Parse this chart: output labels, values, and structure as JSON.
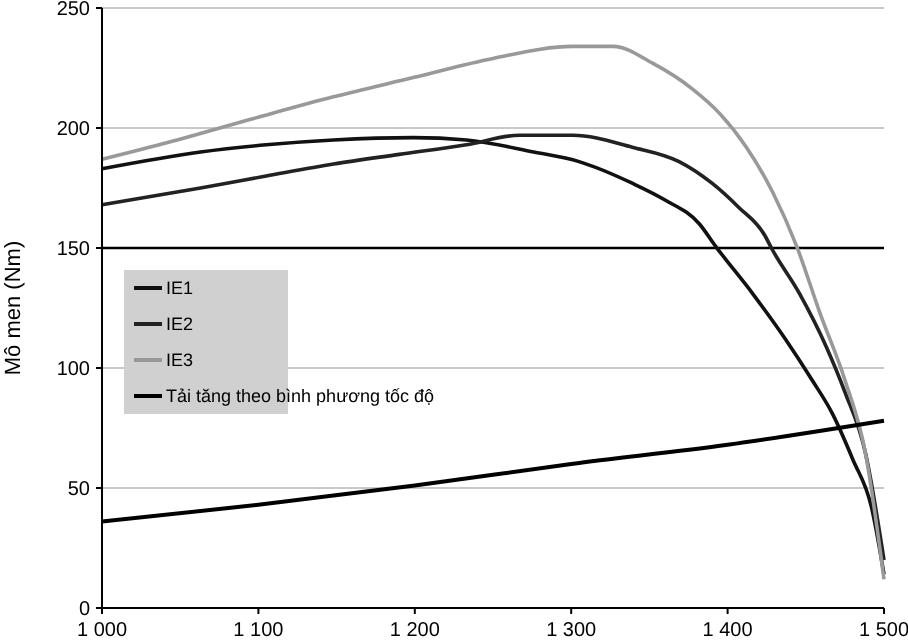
{
  "chart_data": {
    "type": "line",
    "ylabel": "Mô men (Nm)",
    "xlim": [
      1000,
      1500
    ],
    "xticks": [
      {
        "value": 1000,
        "label": "1 000"
      },
      {
        "value": 1100,
        "label": "1 100"
      },
      {
        "value": 1200,
        "label": "1 200"
      },
      {
        "value": 1300,
        "label": "1 300"
      },
      {
        "value": 1400,
        "label": "1 400"
      },
      {
        "value": 1500,
        "label": "1 500"
      }
    ],
    "ylim": [
      0,
      250
    ],
    "yticks": [
      0,
      50,
      100,
      150,
      200,
      250
    ],
    "grid": "y",
    "legend": "left",
    "marker": "none",
    "line_style": "solid",
    "ref_lines": [
      {
        "axis": "y",
        "value": 150,
        "color": "#000000"
      }
    ],
    "series": [
      {
        "name": "IE1",
        "color": "#111111",
        "x": [
          1000,
          1063,
          1105,
          1148,
          1199,
          1233,
          1276,
          1305,
          1339,
          1360,
          1382,
          1392,
          1416,
          1437,
          1454,
          1467,
          1480,
          1492,
          1500
        ],
        "values": [
          183,
          190,
          193,
          195,
          196,
          195,
          190,
          186,
          177,
          170,
          160,
          151,
          131,
          112,
          95,
          81,
          62,
          42,
          14
        ]
      },
      {
        "name": "IE2",
        "color": "#222222",
        "x": [
          1000,
          1063,
          1105,
          1148,
          1190,
          1233,
          1267,
          1301,
          1339,
          1369,
          1390,
          1407,
          1424,
          1428,
          1446,
          1463,
          1475,
          1488,
          1500
        ],
        "values": [
          168,
          175,
          180,
          185,
          189,
          193,
          197,
          197,
          192,
          186,
          177,
          167,
          155,
          150,
          131,
          109,
          90,
          65,
          20
        ]
      },
      {
        "name": "IE3",
        "color": "#999999",
        "x": [
          1000,
          1042,
          1097,
          1148,
          1199,
          1250,
          1301,
          1327,
          1352,
          1378,
          1395,
          1412,
          1429,
          1444,
          1459,
          1475,
          1488,
          1500
        ],
        "values": [
          187,
          194,
          204,
          213,
          221,
          229,
          234,
          234,
          227,
          216,
          206,
          192,
          173,
          151,
          123,
          95,
          65,
          12
        ]
      },
      {
        "name": "Tải tăng theo bình phương tốc độ",
        "color": "#000000",
        "x": [
          1000,
          1100,
          1200,
          1300,
          1400,
          1500
        ],
        "values": [
          36,
          43,
          51,
          60,
          68,
          78
        ]
      }
    ]
  }
}
